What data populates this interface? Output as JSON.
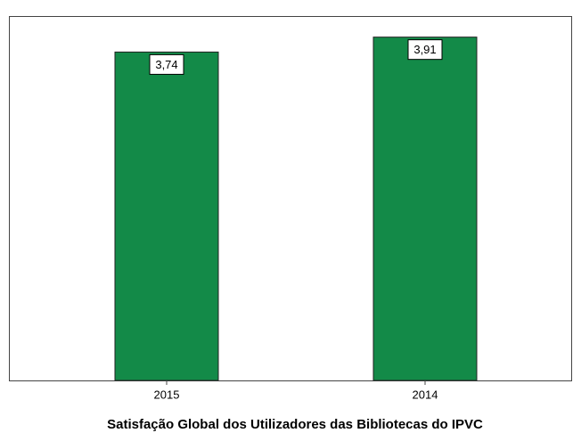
{
  "chart_data": {
    "type": "bar",
    "xlabel": "Satisfação Global dos Utilizadores das Bibliotecas do IPVC",
    "categories": [
      "2015",
      "2014"
    ],
    "values": [
      3.74,
      3.91
    ],
    "value_labels": [
      "3,74",
      "3,91"
    ],
    "color": "#138a48",
    "ylim": [
      0,
      4.15
    ]
  }
}
